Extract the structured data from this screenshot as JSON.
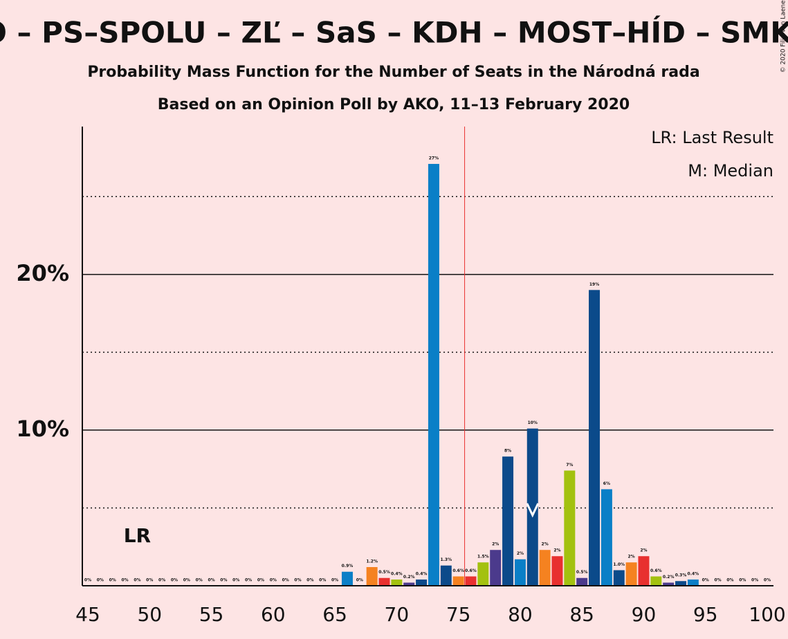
{
  "chart_data": {
    "type": "bar",
    "title": "O – PS–SPOLU – ZĽ – SaS – KDH – MOST–HÍD – SMK",
    "subtitle": "Probability Mass Function for the Number of Seats in the Národná rada",
    "subtitle2": "Based on an Opinion Poll by AKO, 11–13 February 2020",
    "copyright": "© 2020 Filip van Laenen",
    "legend": [
      "LR: Last Result",
      "M: Median"
    ],
    "last_result_marker": "LR",
    "last_result": 49,
    "median": 81,
    "majority": 75.5,
    "categories": [
      45,
      46,
      47,
      48,
      49,
      50,
      51,
      52,
      53,
      54,
      55,
      56,
      57,
      58,
      59,
      60,
      61,
      62,
      63,
      64,
      65,
      66,
      67,
      68,
      69,
      70,
      71,
      72,
      73,
      74,
      75,
      76,
      77,
      78,
      79,
      80,
      81,
      82,
      83,
      84,
      85,
      86,
      87,
      88,
      89,
      90,
      91,
      92,
      93,
      94,
      95,
      96,
      97,
      98,
      99,
      100
    ],
    "values": [
      0,
      0,
      0,
      0,
      0,
      0,
      0,
      0,
      0,
      0,
      0,
      0,
      0,
      0,
      0,
      0,
      0,
      0,
      0,
      0,
      0,
      0.9,
      0,
      1.2,
      0.5,
      0.4,
      0.2,
      0.4,
      27.1,
      1.3,
      0.6,
      0.6,
      1.5,
      2.3,
      8.3,
      1.7,
      10.1,
      2.3,
      1.9,
      7.4,
      0.5,
      19.0,
      6.2,
      1.0,
      1.5,
      1.9,
      0.6,
      0.2,
      0.3,
      0.4,
      0,
      0,
      0,
      0,
      0,
      0
    ],
    "value_labels": [
      "0%",
      "0%",
      "0%",
      "0%",
      "0%",
      "0%",
      "0%",
      "0%",
      "0%",
      "0%",
      "0%",
      "0%",
      "0%",
      "0%",
      "0%",
      "0%",
      "0%",
      "0%",
      "0%",
      "0%",
      "0%",
      "0.9%",
      "0%",
      "1.2%",
      "0.5%",
      "0.4%",
      "0.2%",
      "0.4%",
      "27%",
      "1.3%",
      "0.6%",
      "0.6%",
      "1.5%",
      "2%",
      "8%",
      "2%",
      "10%",
      "2%",
      "2%",
      "7%",
      "0.5%",
      "19%",
      "6%",
      "1.0%",
      "2%",
      "2%",
      "0.6%",
      "0.2%",
      "0.3%",
      "0.4%",
      "0%",
      "0%",
      "0%",
      "0%",
      "0%",
      "0%"
    ],
    "colors": [
      "#0a7fc7",
      "#0b4a8a",
      "#f58220",
      "#e8302f",
      "#a3c10f",
      "#4b3a8c",
      "#0b4a8a",
      "#0a7fc7",
      "#0b4a8a",
      "#f58220",
      "#e8302f",
      "#a3c10f",
      "#4b3a8c",
      "#0b4a8a",
      "#0a7fc7",
      "#0b4a8a",
      "#f58220",
      "#e8302f",
      "#a3c10f",
      "#4b3a8c",
      "#0b4a8a",
      "#0a7fc7",
      "#0b4a8a",
      "#f58220",
      "#e8302f",
      "#a3c10f",
      "#4b3a8c",
      "#0b4a8a",
      "#0a7fc7",
      "#0b4a8a",
      "#f58220",
      "#e8302f",
      "#a3c10f",
      "#4b3a8c",
      "#0b4a8a",
      "#0a7fc7",
      "#0b4a8a",
      "#f58220",
      "#e8302f",
      "#a3c10f",
      "#4b3a8c",
      "#0b4a8a",
      "#0a7fc7",
      "#0b4a8a",
      "#f58220",
      "#e8302f",
      "#a3c10f",
      "#4b3a8c",
      "#0b4a8a",
      "#0a7fc7",
      "#0b4a8a",
      "#f58220",
      "#e8302f",
      "#a3c10f",
      "#4b3a8c",
      "#0b4a8a"
    ],
    "xlim": [
      45,
      100
    ],
    "xticks": [
      45,
      50,
      55,
      60,
      65,
      70,
      75,
      80,
      85,
      90,
      95,
      100
    ],
    "ylim": [
      0,
      29.5
    ],
    "yticks": [
      {
        "value": 10,
        "label": "10%"
      },
      {
        "value": 20,
        "label": "20%"
      }
    ],
    "minor_grid": [
      5,
      15,
      25
    ]
  }
}
